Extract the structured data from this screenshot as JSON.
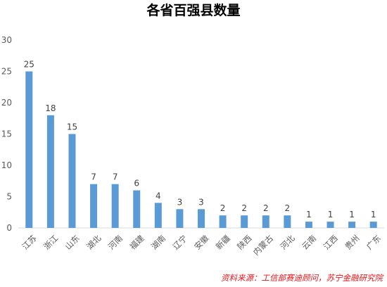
{
  "chart_data": {
    "type": "bar",
    "title": "各省百强县数量",
    "categories": [
      "江苏",
      "浙江",
      "山东",
      "湖北",
      "河南",
      "福建",
      "湖南",
      "辽宁",
      "安徽",
      "新疆",
      "陕西",
      "内蒙古",
      "河北",
      "云南",
      "江西",
      "贵州",
      "广东"
    ],
    "values": [
      25,
      18,
      15,
      7,
      7,
      6,
      4,
      3,
      3,
      2,
      2,
      2,
      2,
      1,
      1,
      1,
      1
    ],
    "ylim": [
      0,
      30
    ],
    "yticks": [
      0,
      5,
      10,
      15,
      20,
      25,
      30
    ],
    "grid": false,
    "legend": "none",
    "bar_color": "#5b9bd5"
  },
  "source_note": "资料来源：工信部赛迪顾问，苏宁金融研究院"
}
